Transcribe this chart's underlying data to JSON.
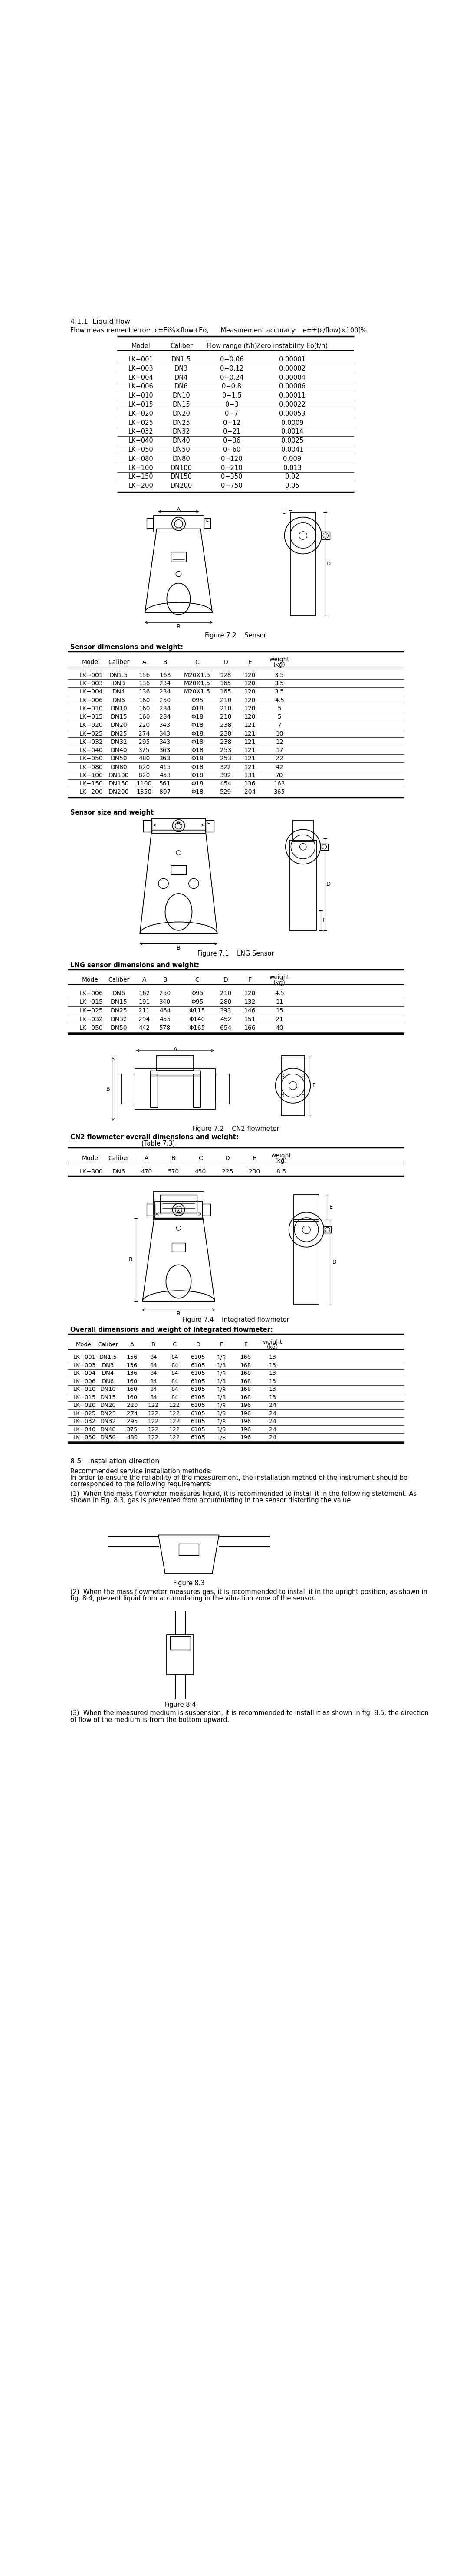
{
  "title_411": "4.1.1  Liquid flow",
  "formula_line": "Flow measurement error:  ε=Ei%×flow+Eo,      Measurement accuracy:   e=±(ε/flow)×100]%.",
  "table1_headers": [
    "Model",
    "Caliber",
    "Flow range (t/h)",
    "Zero instability Eo(t/h)"
  ],
  "table1_data": [
    [
      "LK−001",
      "DN1.5",
      "0−0.06",
      "0.00001"
    ],
    [
      "LK−003",
      "DN3",
      "0−0.12",
      "0.00002"
    ],
    [
      "LK−004",
      "DN4",
      "0−0.24",
      "0.00004"
    ],
    [
      "LK−006",
      "DN6",
      "0−0.8",
      "0.00006"
    ],
    [
      "LK−010",
      "DN10",
      "0−1.5",
      "0.00011"
    ],
    [
      "LK−015",
      "DN15",
      "0−3",
      "0.00022"
    ],
    [
      "LK−020",
      "DN20",
      "0−7",
      "0.00053"
    ],
    [
      "LK−025",
      "DN25",
      "0−12",
      "0.0009"
    ],
    [
      "LK−032",
      "DN32",
      "0−21",
      "0.0014"
    ],
    [
      "LK−040",
      "DN40",
      "0−36",
      "0.0025"
    ],
    [
      "LK−050",
      "DN50",
      "0−60",
      "0.0041"
    ],
    [
      "LK−080",
      "DN80",
      "0−120",
      "0.009"
    ],
    [
      "LK−100",
      "DN100",
      "0−210",
      "0.013"
    ],
    [
      "LK−150",
      "DN150",
      "0−350",
      "0.02"
    ],
    [
      "LK−200",
      "DN200",
      "0−750",
      "0.05"
    ]
  ],
  "fig72_caption": "Figure 7.2    Sensor",
  "sensor_dim_title": "Sensor dimensions and weight:",
  "table2_headers": [
    "Model",
    "Caliber",
    "A",
    "B",
    "C",
    "D",
    "E",
    "weight\n(kg)"
  ],
  "table2_data": [
    [
      "LK−001",
      "DN1.5",
      "156",
      "168",
      "M20X1.5",
      "128",
      "120",
      "3.5"
    ],
    [
      "LK−003",
      "DN3",
      "136",
      "234",
      "M20X1.5",
      "165",
      "120",
      "3.5"
    ],
    [
      "LK−004",
      "DN4",
      "136",
      "234",
      "M20X1.5",
      "165",
      "120",
      "3.5"
    ],
    [
      "LK−006",
      "DN6",
      "160",
      "250",
      "Φ95",
      "210",
      "120",
      "4.5"
    ],
    [
      "LK−010",
      "DN10",
      "160",
      "284",
      "Φ18",
      "210",
      "120",
      "5"
    ],
    [
      "LK−015",
      "DN15",
      "160",
      "284",
      "Φ18",
      "210",
      "120",
      "5"
    ],
    [
      "LK−020",
      "DN20",
      "220",
      "343",
      "Φ18",
      "238",
      "121",
      "7"
    ],
    [
      "LK−025",
      "DN25",
      "274",
      "343",
      "Φ18",
      "238",
      "121",
      "10"
    ],
    [
      "LK−032",
      "DN32",
      "295",
      "343",
      "Φ18",
      "238",
      "121",
      "12"
    ],
    [
      "LK−040",
      "DN40",
      "375",
      "363",
      "Φ18",
      "253",
      "121",
      "17"
    ],
    [
      "LK−050",
      "DN50",
      "480",
      "363",
      "Φ18",
      "253",
      "121",
      "22"
    ],
    [
      "LK−080",
      "DN80",
      "620",
      "415",
      "Φ18",
      "322",
      "121",
      "42"
    ],
    [
      "LK−100",
      "DN100",
      "820",
      "453",
      "Φ18",
      "392",
      "131",
      "70"
    ],
    [
      "LK−150",
      "DN150",
      "1100",
      "561",
      "Φ18",
      "454",
      "136",
      "163"
    ],
    [
      "LK−200",
      "DN200",
      "1350",
      "807",
      "Φ18",
      "529",
      "204",
      "365"
    ]
  ],
  "sensor_size_title": "Sensor size and weight",
  "fig71_caption": "Figure 7.1    LNG Sensor",
  "lng_dim_title": "LNG sensor dimensions and weight:",
  "table3_headers": [
    "Model",
    "Caliber",
    "A",
    "B",
    "C",
    "D",
    "F",
    "weight\n(kg)"
  ],
  "table3_data": [
    [
      "LK−006",
      "DN6",
      "162",
      "250",
      "Φ95",
      "210",
      "120",
      "4.5"
    ],
    [
      "LK−015",
      "DN15",
      "191",
      "340",
      "Φ95",
      "280",
      "132",
      "11"
    ],
    [
      "LK−025",
      "DN25",
      "211",
      "464",
      "Φ115",
      "393",
      "146",
      "15"
    ],
    [
      "LK−032",
      "DN32",
      "294",
      "455",
      "Φ140",
      "452",
      "151",
      "21"
    ],
    [
      "LK−050",
      "DN50",
      "442",
      "578",
      "Φ165",
      "654",
      "166",
      "40"
    ]
  ],
  "fig72b_caption": "Figure 7.2    CN2 flowmeter",
  "cn2_overall_title": "CN2 flowmeter overall dimensions and weight:",
  "table4_note": "(Table 7.3)",
  "table4_headers": [
    "Model",
    "Caliber",
    "A",
    "B",
    "C",
    "D",
    "E",
    "weight\n(kg)"
  ],
  "table4_data": [
    [
      "LK−300",
      "DN6",
      "470",
      "570",
      "450",
      "225",
      "230",
      "8.5"
    ]
  ],
  "fig74_caption": "Figure 7.4    Integrated flowmeter",
  "integrated_dim_title": "Overall dimensions and weight of Integrated flowmeter:",
  "table5_headers": [
    "Model",
    "Caliber",
    "A",
    "B",
    "C",
    "D",
    "E",
    "F",
    "weight\n(kg)"
  ],
  "table5_data": [
    [
      "LK−001",
      "DN1.5",
      "156",
      "84",
      "84",
      "6105",
      "1/8",
      "168",
      "13"
    ],
    [
      "LK−003",
      "DN3",
      "136",
      "84",
      "84",
      "6105",
      "1/8",
      "168",
      "13"
    ],
    [
      "LK−004",
      "DN4",
      "136",
      "84",
      "84",
      "6105",
      "1/8",
      "168",
      "13"
    ],
    [
      "LK−006",
      "DN6",
      "160",
      "84",
      "84",
      "6105",
      "1/8",
      "168",
      "13"
    ],
    [
      "LK−010",
      "DN10",
      "160",
      "84",
      "84",
      "6105",
      "1/8",
      "168",
      "13"
    ],
    [
      "LK−015",
      "DN15",
      "160",
      "84",
      "84",
      "6105",
      "1/8",
      "168",
      "13"
    ],
    [
      "LK−020",
      "DN20",
      "220",
      "122",
      "122",
      "6105",
      "1/8",
      "196",
      "24"
    ],
    [
      "LK−025",
      "DN25",
      "274",
      "122",
      "122",
      "6105",
      "1/8",
      "196",
      "24"
    ],
    [
      "LK−032",
      "DN32",
      "295",
      "122",
      "122",
      "6105",
      "1/8",
      "196",
      "24"
    ],
    [
      "LK−040",
      "DN40",
      "375",
      "122",
      "122",
      "6105",
      "1/8",
      "196",
      "24"
    ],
    [
      "LK−050",
      "DN50",
      "480",
      "122",
      "122",
      "6105",
      "1/8",
      "196",
      "24"
    ]
  ],
  "section_85": "8.5   Installation direction",
  "install_text1": "Recommended service installation methods:",
  "install_text2": "In order to ensure the reliability of the measurement, the installation method of the instrument should be",
  "install_text3": "corresponded to the following requirements:",
  "install_note1a": "(1)  When the mass flowmeter measures liquid, it is recommended to install it in the following statement. As",
  "install_note1b": "shown in Fig. 8.3, gas is prevented from accumulating in the sensor distorting the value.",
  "fig83_caption": "Figure 8.3",
  "install_note2a": "(2)  When the mass flowmeter measures gas, it is recommended to install it in the upright position, as shown in",
  "install_note2b": "fig. 8.4, prevent liquid from accumulating in the vibration zone of the sensor.",
  "fig84_caption": "Figure 8.4",
  "install_note3a": "(3)  When the measured medium is suspension, it is recommended to install it as shown in fig. 8.5, the direction",
  "install_note3b": "of flow of the medium is from the bottom upward."
}
